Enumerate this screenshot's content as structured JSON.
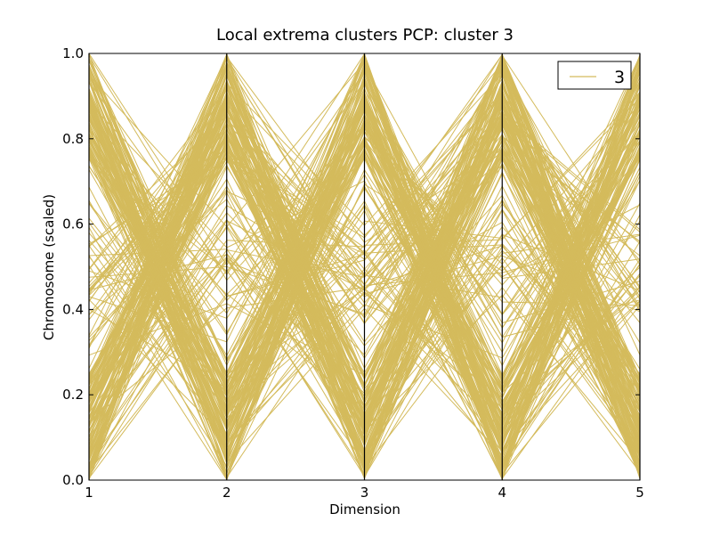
{
  "chart_data": {
    "type": "parallel-coordinates",
    "title": "Local extrema clusters PCP: cluster 3",
    "xlabel": "Dimension",
    "ylabel": "Chromosome (scaled)",
    "dimensions": [
      1,
      2,
      3,
      4,
      5
    ],
    "xlim": [
      1,
      5
    ],
    "ylim": [
      0.0,
      1.0
    ],
    "yticks": [
      "0.0",
      "0.2",
      "0.4",
      "0.6",
      "0.8",
      "1.0"
    ],
    "xticks": [
      "1",
      "2",
      "3",
      "4",
      "5"
    ],
    "grid": false,
    "legend": {
      "position": "top-right",
      "entries": [
        {
          "label": "3",
          "color": "#d4bb5c"
        }
      ]
    },
    "series": [
      {
        "name": "3",
        "color": "#d4bb5c",
        "line_count": 300,
        "pattern": "each polyline alternates extremes: dims 1, 3, 5 near one end of [0,1] and dims 2, 4 near the opposite end"
      }
    ]
  }
}
